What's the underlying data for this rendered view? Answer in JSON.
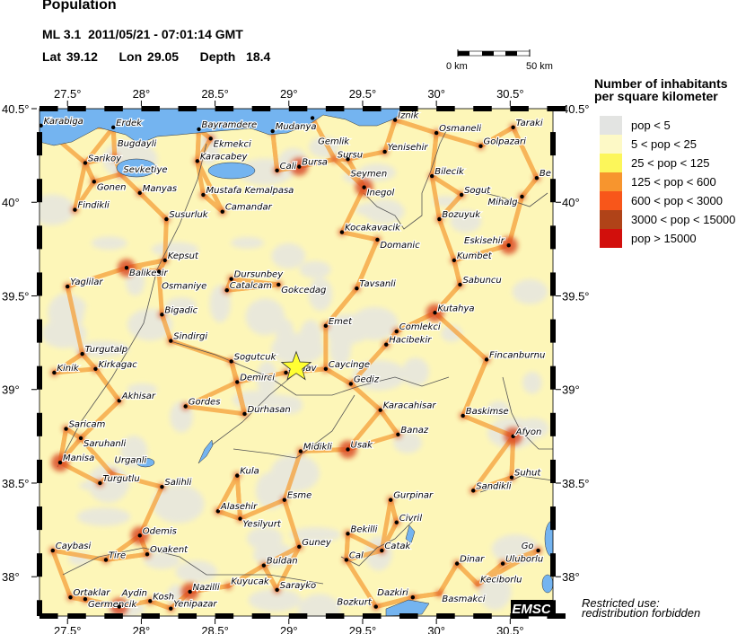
{
  "header": {
    "title": "Population",
    "event_line": "ML 3.1  2011/05/21 - 07:01:14 GMT",
    "location_line": "Lat 39.12    Lon 29.05    Depth  18.4"
  },
  "scale_bar": {
    "start_label": "0 km",
    "end_label": "50 km"
  },
  "map": {
    "lon_range": [
      27.31,
      30.79
    ],
    "lat_range": [
      37.79,
      40.5
    ],
    "lon_ticks": [
      "27.5°",
      "28°",
      "28.5°",
      "29°",
      "29.5°",
      "30°",
      "30.5°"
    ],
    "lon_tick_values": [
      27.5,
      28,
      28.5,
      29,
      29.5,
      30,
      30.5
    ],
    "lat_ticks": [
      "40.5°",
      "40°",
      "39.5°",
      "39°",
      "38.5°",
      "38°"
    ],
    "lat_tick_values": [
      40.5,
      40,
      39.5,
      39,
      38.5,
      38
    ],
    "epicenter": {
      "lat": 39.12,
      "lon": 29.05,
      "marker": "star-icon",
      "color": "#ffff33"
    },
    "credit": "EMSC",
    "colors": {
      "water": "#74b4f0",
      "low": "#e3e3e3",
      "base": "#fdf8c8",
      "road": "#f59a32",
      "city": "#d2330f"
    },
    "cities": [
      {
        "n": "Karabiga",
        "lon": 27.32,
        "lat": 40.41
      },
      {
        "n": "Erdek",
        "lon": 27.81,
        "lat": 40.4
      },
      {
        "n": "Bayramdere",
        "lon": 28.39,
        "lat": 40.39
      },
      {
        "n": "Ekmekci",
        "lon": 28.47,
        "lat": 40.34
      },
      {
        "n": "Mudanya",
        "lon": 28.89,
        "lat": 40.38
      },
      {
        "n": "Gemlik",
        "lon": 29.16,
        "lat": 40.45
      },
      {
        "n": "Iznik",
        "lon": 29.72,
        "lat": 40.44
      },
      {
        "n": "Osmaneli",
        "lon": 30.0,
        "lat": 40.37
      },
      {
        "n": "Taraki",
        "lon": 30.52,
        "lat": 40.4
      },
      {
        "n": "Sarikoy",
        "lon": 27.62,
        "lat": 40.21
      },
      {
        "n": "Bugdayli",
        "lon": 27.82,
        "lat": 40.24,
        "nodot": true
      },
      {
        "n": "Sevketiye",
        "lon": 27.86,
        "lat": 40.15,
        "nodot": true
      },
      {
        "n": "Gonen",
        "lon": 27.68,
        "lat": 40.11
      },
      {
        "n": "Manyas",
        "lon": 27.99,
        "lat": 40.05
      },
      {
        "n": "Karacabey",
        "lon": 28.38,
        "lat": 40.22
      },
      {
        "n": "Cali",
        "lon": 28.92,
        "lat": 40.17
      },
      {
        "n": "Bursa",
        "lon": 29.07,
        "lat": 40.19
      },
      {
        "n": "Sursu",
        "lon": 29.31,
        "lat": 40.23,
        "nodot": true
      },
      {
        "n": "Seymen",
        "lon": 29.4,
        "lat": 40.23
      },
      {
        "n": "Yenisehir",
        "lon": 29.65,
        "lat": 40.27
      },
      {
        "n": "Golpazari",
        "lon": 30.3,
        "lat": 40.3
      },
      {
        "n": "Bilecik",
        "lon": 29.97,
        "lat": 40.14
      },
      {
        "n": "Be",
        "lon": 30.68,
        "lat": 40.13
      },
      {
        "n": "Inegol",
        "lon": 29.51,
        "lat": 40.08
      },
      {
        "n": "Sogut",
        "lon": 30.17,
        "lat": 40.04
      },
      {
        "n": "Mihalg",
        "lon": 30.58,
        "lat": 40.03
      },
      {
        "n": "Findikli",
        "lon": 27.55,
        "lat": 39.96
      },
      {
        "n": "Mustafa Kemalpasa",
        "lon": 28.42,
        "lat": 40.04
      },
      {
        "n": "Susurluk",
        "lon": 28.17,
        "lat": 39.91
      },
      {
        "n": "Camandar",
        "lon": 28.55,
        "lat": 39.95
      },
      {
        "n": "Bozuyuk",
        "lon": 30.02,
        "lat": 39.91
      },
      {
        "n": "Kocakavacik",
        "lon": 29.36,
        "lat": 39.84
      },
      {
        "n": "Domanic",
        "lon": 29.6,
        "lat": 39.8
      },
      {
        "n": "Eskisehir",
        "lon": 30.49,
        "lat": 39.77
      },
      {
        "n": "Kumbet",
        "lon": 30.12,
        "lat": 39.69
      },
      {
        "n": "Kepsut",
        "lon": 28.16,
        "lat": 39.69
      },
      {
        "n": "Balikesir",
        "lon": 27.9,
        "lat": 39.65
      },
      {
        "n": "Osmaniye",
        "lon": 28.12,
        "lat": 39.63
      },
      {
        "n": "Dursunbey",
        "lon": 28.61,
        "lat": 39.59
      },
      {
        "n": "Catalcam",
        "lon": 28.58,
        "lat": 39.53
      },
      {
        "n": "Gokcedag",
        "lon": 28.93,
        "lat": 39.56
      },
      {
        "n": "Yaglilar",
        "lon": 27.5,
        "lat": 39.55
      },
      {
        "n": "Tavsanli",
        "lon": 29.46,
        "lat": 39.54
      },
      {
        "n": "Sabuncu",
        "lon": 30.16,
        "lat": 39.56
      },
      {
        "n": "Kutahya",
        "lon": 29.99,
        "lat": 39.41
      },
      {
        "n": "Bigadic",
        "lon": 28.14,
        "lat": 39.4
      },
      {
        "n": "Emet",
        "lon": 29.25,
        "lat": 39.34
      },
      {
        "n": "Comlekci",
        "lon": 29.73,
        "lat": 39.31
      },
      {
        "n": "Sindirgi",
        "lon": 28.2,
        "lat": 39.26
      },
      {
        "n": "Hacibekir",
        "lon": 29.66,
        "lat": 39.24
      },
      {
        "n": "Turgutalp",
        "lon": 27.6,
        "lat": 39.19
      },
      {
        "n": "Sogutcuk",
        "lon": 28.61,
        "lat": 39.15
      },
      {
        "n": "Fincanburnu",
        "lon": 30.34,
        "lat": 39.16
      },
      {
        "n": "Kinik",
        "lon": 27.41,
        "lat": 39.09
      },
      {
        "n": "Kirkagac",
        "lon": 27.69,
        "lat": 39.11
      },
      {
        "n": "Simav",
        "lon": 28.98,
        "lat": 39.09
      },
      {
        "n": "Caycinge",
        "lon": 29.25,
        "lat": 39.11
      },
      {
        "n": "Demirci",
        "lon": 28.65,
        "lat": 39.04
      },
      {
        "n": "Gediz",
        "lon": 29.42,
        "lat": 39.03
      },
      {
        "n": "Akhisar",
        "lon": 27.85,
        "lat": 38.94
      },
      {
        "n": "Gordes",
        "lon": 28.3,
        "lat": 38.91
      },
      {
        "n": "Durhasan",
        "lon": 28.7,
        "lat": 38.87
      },
      {
        "n": "Karacahisar",
        "lon": 29.62,
        "lat": 38.89
      },
      {
        "n": "Baskimse",
        "lon": 30.18,
        "lat": 38.86
      },
      {
        "n": "Saricam",
        "lon": 27.49,
        "lat": 38.79
      },
      {
        "n": "Saruhanli",
        "lon": 27.59,
        "lat": 38.74
      },
      {
        "n": "Banaz",
        "lon": 29.74,
        "lat": 38.76
      },
      {
        "n": "Afyon",
        "lon": 30.52,
        "lat": 38.75
      },
      {
        "n": "Midikli",
        "lon": 29.08,
        "lat": 38.67
      },
      {
        "n": "Usak",
        "lon": 29.4,
        "lat": 38.68
      },
      {
        "n": "Manisa",
        "lon": 27.45,
        "lat": 38.61
      },
      {
        "n": "Turgutlu",
        "lon": 27.72,
        "lat": 38.5
      },
      {
        "n": "Urganli",
        "lon": 27.8,
        "lat": 38.55,
        "nodot": true
      },
      {
        "n": "Salihli",
        "lon": 28.14,
        "lat": 38.48
      },
      {
        "n": "Kula",
        "lon": 28.65,
        "lat": 38.54
      },
      {
        "n": "Suhut",
        "lon": 30.51,
        "lat": 38.53
      },
      {
        "n": "Sandikli",
        "lon": 30.25,
        "lat": 38.46
      },
      {
        "n": "Esme",
        "lon": 28.97,
        "lat": 38.41
      },
      {
        "n": "Gurpinar",
        "lon": 29.69,
        "lat": 38.41
      },
      {
        "n": "Alasehir",
        "lon": 28.52,
        "lat": 38.35
      },
      {
        "n": "Yesilyurt",
        "lon": 28.67,
        "lat": 38.31
      },
      {
        "n": "Civril",
        "lon": 29.73,
        "lat": 38.29
      },
      {
        "n": "Bekilli",
        "lon": 29.4,
        "lat": 38.23
      },
      {
        "n": "Odemis",
        "lon": 27.99,
        "lat": 38.22
      },
      {
        "n": "Guney",
        "lon": 29.07,
        "lat": 38.16
      },
      {
        "n": "Catak",
        "lon": 29.63,
        "lat": 38.14
      },
      {
        "n": "Caybasi",
        "lon": 27.4,
        "lat": 38.14
      },
      {
        "n": "Tire",
        "lon": 27.76,
        "lat": 38.09
      },
      {
        "n": "Ovakent",
        "lon": 28.04,
        "lat": 38.12
      },
      {
        "n": "Buldan",
        "lon": 28.83,
        "lat": 38.06
      },
      {
        "n": "Cal",
        "lon": 29.39,
        "lat": 38.09
      },
      {
        "n": "Dinar",
        "lon": 30.14,
        "lat": 38.07
      },
      {
        "n": "Uluborlu",
        "lon": 30.45,
        "lat": 38.07
      },
      {
        "n": "Go",
        "lon": 30.69,
        "lat": 38.14
      },
      {
        "n": "Kuyucak",
        "lon": 28.59,
        "lat": 37.95,
        "nodot": true
      },
      {
        "n": "Sarayko",
        "lon": 28.92,
        "lat": 37.93
      },
      {
        "n": "Keciborlu",
        "lon": 30.28,
        "lat": 37.96,
        "nodot": true
      },
      {
        "n": "Basmakci",
        "lon": 30.02,
        "lat": 37.91,
        "nodot": true
      },
      {
        "n": "Nazilli",
        "lon": 28.33,
        "lat": 37.92
      },
      {
        "n": "Dazkiri",
        "lon": 29.84,
        "lat": 37.89
      },
      {
        "n": "Ortaklar",
        "lon": 27.52,
        "lat": 37.89
      },
      {
        "n": "Germencik",
        "lon": 27.62,
        "lat": 37.88
      },
      {
        "n": "Aydin",
        "lon": 27.85,
        "lat": 37.84
      },
      {
        "n": "Kosh",
        "lon": 28.06,
        "lat": 37.87
      },
      {
        "n": "Yenipazar",
        "lon": 28.2,
        "lat": 37.83
      },
      {
        "n": "Bozkurt",
        "lon": 29.59,
        "lat": 37.84
      }
    ]
  },
  "legend": {
    "title_line1": "Number of inhabitants",
    "title_line2": "per square kilometer",
    "items": [
      {
        "label": "pop < 5",
        "color": "#e3e4e2"
      },
      {
        "label": "5 < pop < 25",
        "color": "#fdf9c6"
      },
      {
        "label": "25 < pop < 125",
        "color": "#fcf65a"
      },
      {
        "label": "125 < pop < 600",
        "color": "#f7952e"
      },
      {
        "label": "600 < pop < 3000",
        "color": "#f8561a"
      },
      {
        "label": "3000 < pop < 15000",
        "color": "#b04318"
      },
      {
        "label": "pop > 15000",
        "color": "#d20f0c"
      }
    ]
  },
  "footer": {
    "restricted_line1": "Restricted use:",
    "restricted_line2": "redistribution forbidden"
  }
}
